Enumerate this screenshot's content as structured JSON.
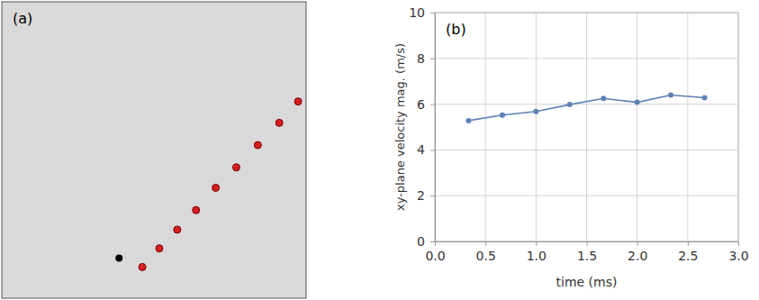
{
  "chart_data": [
    {
      "type": "scatter",
      "title": "(a)",
      "series": [
        {
          "x": [
            157,
            176,
            196,
            217,
            239,
            262,
            286,
            310,
            331
          ],
          "values": [
            35,
            56,
            77,
            99,
            124,
            147,
            172,
            197,
            221
          ],
          "color": "#d62020",
          "marker": "circle"
        },
        {
          "x": [
            131
          ],
          "values": [
            45
          ],
          "color": "#000000",
          "marker": "circle"
        }
      ],
      "xlim": [
        0,
        340
      ],
      "ylim": [
        0,
        333
      ],
      "tick_labels": false
    },
    {
      "type": "line",
      "title": "(b)",
      "x": [
        0.333,
        0.667,
        1.0,
        1.333,
        1.667,
        2.0,
        2.333,
        2.667
      ],
      "series": [
        {
          "values": [
            5.28,
            5.52,
            5.68,
            5.98,
            6.25,
            6.08,
            6.4,
            6.28
          ],
          "color": "#5e81b5",
          "marker": "circle"
        }
      ],
      "x_label": "time (ms)",
      "y_label": "xy-plane velocity mag. (m/s)",
      "xlim": [
        0,
        3
      ],
      "ylim": [
        0,
        10
      ],
      "xticks": [
        {
          "value": 0,
          "label": "0.0"
        },
        0.5,
        {
          "value": 1,
          "label": "1.0"
        },
        1.5,
        {
          "value": 2,
          "label": "2.0"
        },
        2.5,
        {
          "value": 3,
          "label": "3.0"
        }
      ],
      "yticks": [
        0,
        2,
        4,
        6,
        8,
        10
      ],
      "grid": true
    }
  ]
}
